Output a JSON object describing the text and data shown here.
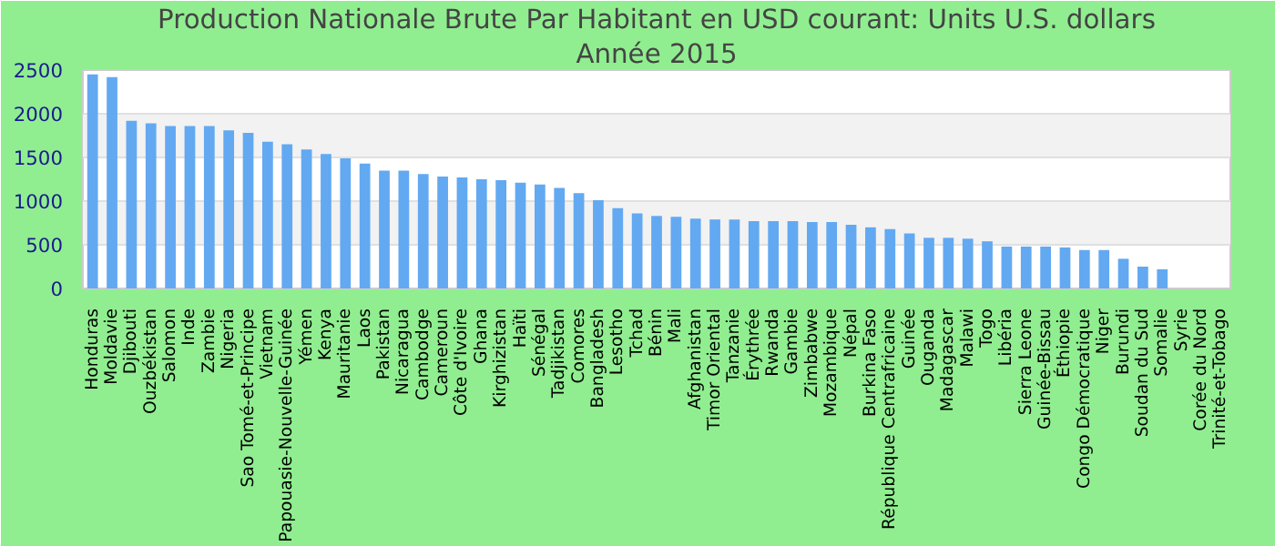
{
  "chart_data": {
    "type": "bar",
    "title": "Production Nationale Brute Par Habitant en USD courant: Units U.S. dollars",
    "subtitle": "Année 2015",
    "categories": [
      "Honduras",
      "Moldavie",
      "Djibouti",
      "Ouzbékistan",
      "Salomon",
      "Inde",
      "Zambie",
      "Nigeria",
      "Sao Tomé-et-Principe",
      "Vietnam",
      "Papouasie-Nouvelle-Guinée",
      "Yémen",
      "Kenya",
      "Mauritanie",
      "Laos",
      "Pakistan",
      "Nicaragua",
      "Cambodge",
      "Cameroun",
      "Côte d'Ivoire",
      "Ghana",
      "Kirghizistan",
      "Haïti",
      "Sénégal",
      "Tadjikistan",
      "Comores",
      "Bangladesh",
      "Lesotho",
      "Tchad",
      "Bénin",
      "Mali",
      "Afghanistan",
      "Timor Oriental",
      "Tanzanie",
      "Érythrée",
      "Rwanda",
      "Gambie",
      "Zimbabwe",
      "Mozambique",
      "Népal",
      "Burkina Faso",
      "République Centrafricaine",
      "Guinée",
      "Ouganda",
      "Madagascar",
      "Malawi",
      "Togo",
      "Libéria",
      "Sierra Leone",
      "Guinée-Bissau",
      "Éthiopie",
      "Congo Démocratique",
      "Niger",
      "Burundi",
      "Soudan du Sud",
      "Somalie",
      "Syrie",
      "Corée du Nord",
      "Trinité-et-Tobago"
    ],
    "values": [
      2450,
      2420,
      1920,
      1890,
      1860,
      1860,
      1860,
      1810,
      1780,
      1680,
      1650,
      1590,
      1540,
      1490,
      1430,
      1350,
      1350,
      1310,
      1280,
      1270,
      1250,
      1240,
      1210,
      1190,
      1150,
      1090,
      1010,
      920,
      860,
      830,
      820,
      800,
      790,
      790,
      770,
      770,
      770,
      760,
      760,
      730,
      700,
      680,
      630,
      580,
      580,
      570,
      540,
      480,
      480,
      480,
      470,
      440,
      440,
      340,
      250,
      220,
      null,
      null,
      null
    ],
    "color": "#62a9f2",
    "ylim": [
      0,
      2500
    ],
    "yticks": [
      0,
      500,
      1000,
      1500,
      2000,
      2500
    ],
    "grid": "y"
  }
}
